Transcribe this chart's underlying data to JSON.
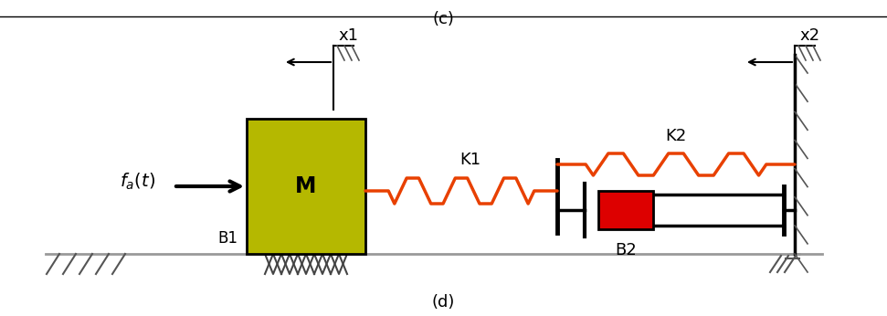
{
  "title_top": "(c)",
  "title_bottom": "(d)",
  "bg_color": "#ffffff",
  "mass_color": "#b5b800",
  "mass_label": "M",
  "spring_color": "#e84000",
  "b2_color": "#dd0000",
  "wall_hatch_color": "#555555",
  "ground_color": "#aaaaaa",
  "k1_label": "K1",
  "k2_label": "K2",
  "b1_label": "B1",
  "b2_label": "B2",
  "x1_label": "x1",
  "x2_label": "x2",
  "force_label": "f_a(t)"
}
